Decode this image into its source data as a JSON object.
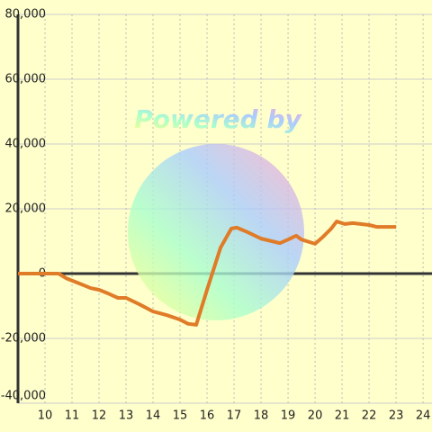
{
  "chart_data": {
    "type": "line",
    "watermark": "Powered by",
    "xlim": [
      9,
      24.33
    ],
    "ylim": [
      -40000,
      80000
    ],
    "xticks": [
      10,
      11,
      12,
      13,
      14,
      15,
      16,
      17,
      18,
      19,
      20,
      21,
      22,
      23,
      24
    ],
    "yticks": [
      {
        "value": -40000,
        "label": "-40,000"
      },
      {
        "value": -20000,
        "label": "-20,000"
      },
      0,
      {
        "value": 20000,
        "label": "20,000"
      },
      {
        "value": 40000,
        "label": "40,000"
      },
      {
        "value": 60000,
        "label": "60,000"
      },
      {
        "value": 80000,
        "label": "80,000"
      }
    ],
    "grid": true,
    "series": [
      {
        "color": "#e07b28",
        "x": [
          9,
          10.5,
          10.8,
          11.2,
          11.7,
          12,
          12.3,
          12.7,
          13,
          13.5,
          14,
          14.5,
          15,
          15.3,
          15.6,
          16,
          16.5,
          16.9,
          17.1,
          17.5,
          18,
          18.4,
          18.7,
          19,
          19.3,
          19.5,
          20,
          20.3,
          20.6,
          20.8,
          21.1,
          21.4,
          22,
          22.3,
          23
        ],
        "values": [
          0,
          0,
          -1500,
          -2800,
          -4500,
          -5000,
          -6000,
          -7500,
          -7500,
          -9500,
          -11700,
          -12800,
          -14200,
          -15500,
          -15800,
          -5000,
          8000,
          13900,
          14200,
          12800,
          10800,
          10000,
          9400,
          10500,
          11700,
          10500,
          9200,
          11400,
          13900,
          16100,
          15300,
          15600,
          15000,
          14400,
          14400
        ]
      }
    ]
  }
}
